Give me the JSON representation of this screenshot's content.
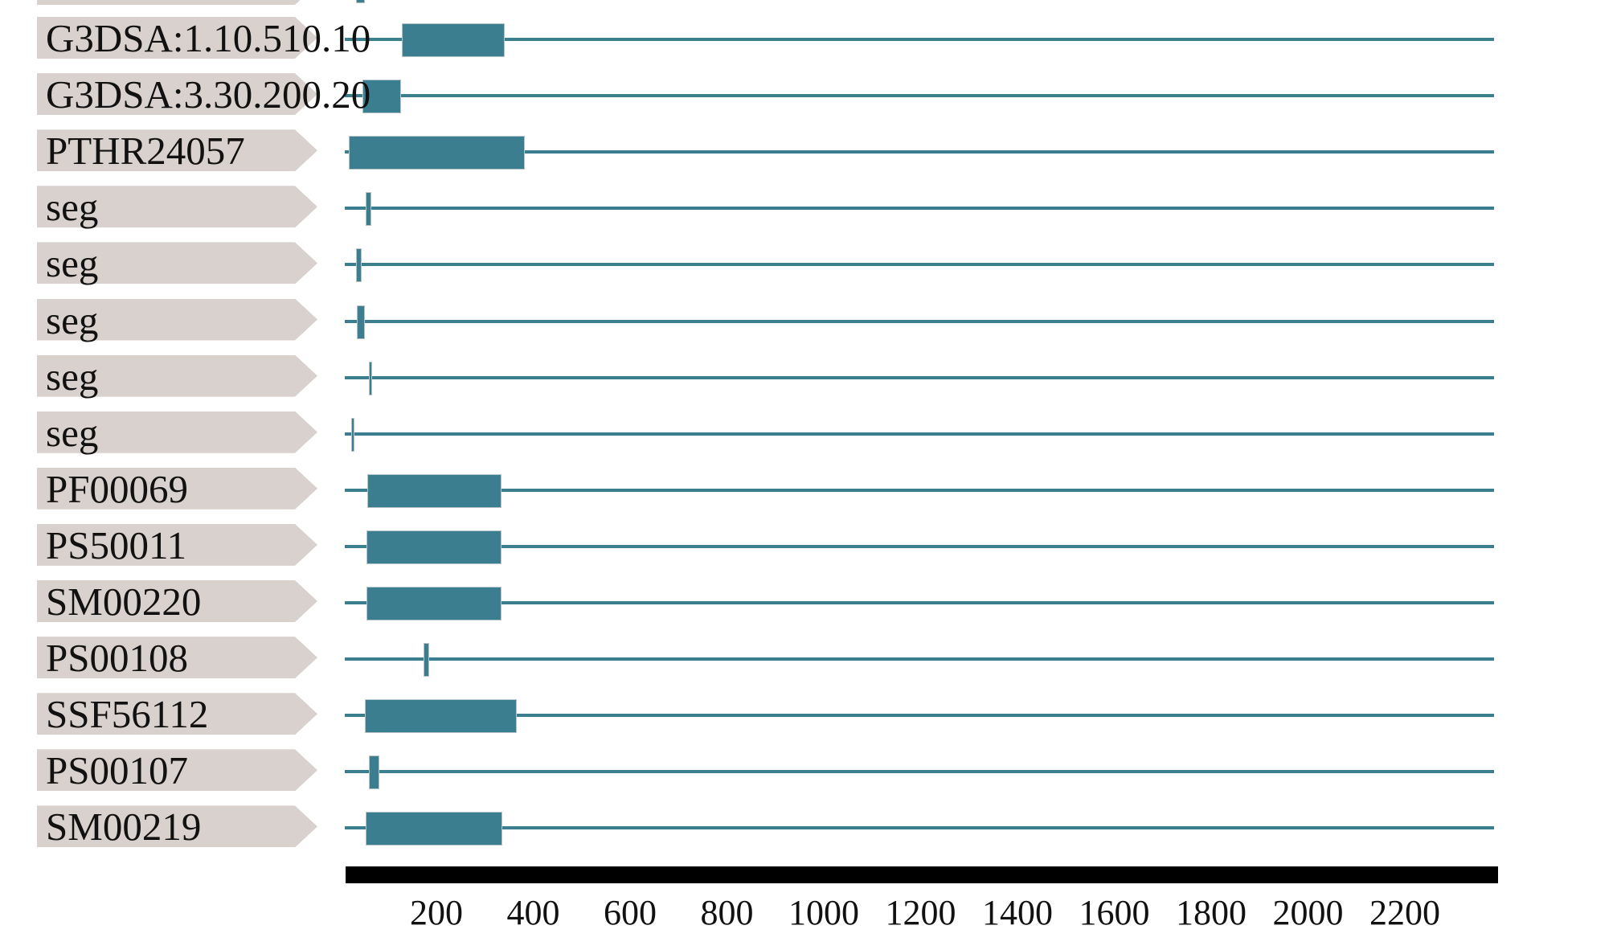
{
  "colors": {
    "match_bar": "#3b7e8f",
    "sequence_line": "#3b7e8f",
    "label_box": "#d8d1cd",
    "axis_bar": "#000000",
    "text": "#111111",
    "background": "#ffffff"
  },
  "chart_data": {
    "type": "bar",
    "subtype": "protein-signature-match-tracks",
    "orientation": "horizontal",
    "grid": false,
    "legend_position": "none",
    "x_axis": {
      "min": 0,
      "max": 2400,
      "tick_interval": 200
    },
    "x_ticks": [
      200,
      400,
      600,
      800,
      1000,
      1200,
      1400,
      1600,
      1800,
      2000,
      2200
    ],
    "rows": [
      {
        "label": "",
        "start": 34,
        "end": 52,
        "partial": true
      },
      {
        "label": "G3DSA:1.10.510.10",
        "start": 129,
        "end": 341
      },
      {
        "label": "G3DSA:3.30.200.20",
        "start": 47,
        "end": 127
      },
      {
        "label": "PTHR24057",
        "start": 19,
        "end": 382
      },
      {
        "label": "seg",
        "start": 54,
        "end": 66
      },
      {
        "label": "seg",
        "start": 34,
        "end": 46
      },
      {
        "label": "seg",
        "start": 36,
        "end": 52
      },
      {
        "label": "seg",
        "start": 61,
        "end": 67
      },
      {
        "label": "seg",
        "start": 24,
        "end": 31
      },
      {
        "label": "PF00069",
        "start": 57,
        "end": 334
      },
      {
        "label": "PS50011",
        "start": 56,
        "end": 334
      },
      {
        "label": "SM00220",
        "start": 56,
        "end": 334
      },
      {
        "label": "PS00108",
        "start": 173,
        "end": 185
      },
      {
        "label": "SSF56112",
        "start": 52,
        "end": 366
      },
      {
        "label": "PS00107",
        "start": 61,
        "end": 82
      },
      {
        "label": "SM00219",
        "start": 54,
        "end": 336
      }
    ]
  }
}
